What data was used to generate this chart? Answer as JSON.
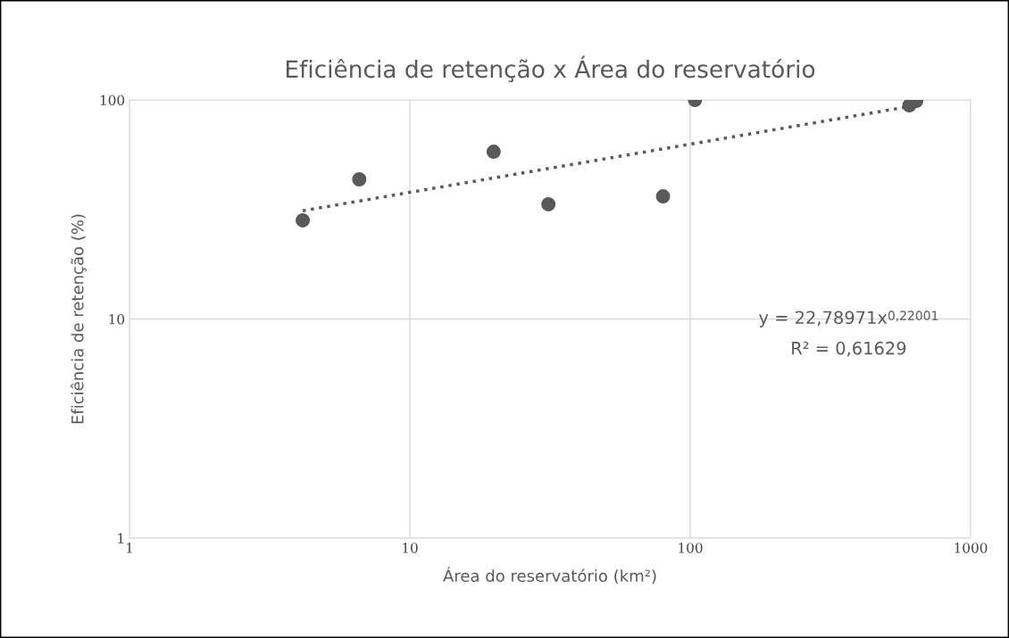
{
  "chart_data": {
    "type": "scatter",
    "title": "Eficiência de retenção x Área do reservatório",
    "xlabel": "Área do reservatório (km²)",
    "ylabel": "Eficiência de retenção (%)",
    "log": "xy",
    "xlim": [
      1,
      1000
    ],
    "ylim": [
      1,
      100
    ],
    "xticks": [
      1,
      10,
      100,
      1000
    ],
    "yticks": [
      1,
      10,
      100
    ],
    "grid": true,
    "series": [
      {
        "marker": "circle",
        "color": "#595959",
        "x": [
          4.15,
          6.6,
          19.9,
          31.2,
          80,
          104,
          605,
          640
        ],
        "values": [
          28.2,
          43.4,
          58,
          33.4,
          36.3,
          100,
          94.5,
          99
        ]
      },
      {
        "type": "line",
        "color": "#595959",
        "line_style": "dotted",
        "marker": "none",
        "x": [
          4.15,
          640
        ],
        "values": [
          31.2,
          94.5
        ]
      }
    ],
    "annotations": [
      "y = 22,78971x$^{0,22001}$",
      "R² = 0,61629"
    ]
  }
}
